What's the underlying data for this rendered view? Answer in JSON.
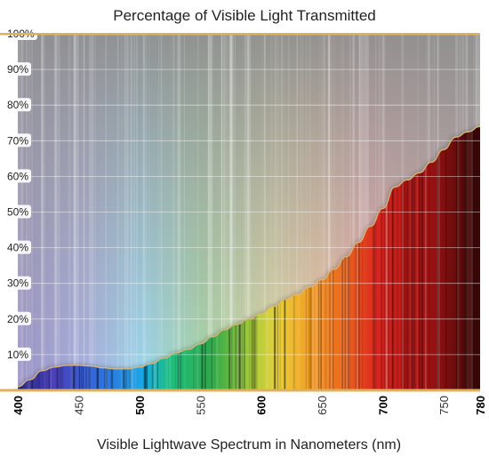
{
  "chart_data": {
    "type": "area",
    "title": "Percentage of Visible Light Transmitted",
    "xlabel": "Visible Lightwave Spectrum in Nanometers (nm)",
    "ylabel": "",
    "xlim": [
      400,
      780
    ],
    "ylim": [
      0,
      100
    ],
    "x_ticks": [
      {
        "label": "400",
        "value": 400,
        "bold": true
      },
      {
        "label": "450",
        "value": 450,
        "bold": false
      },
      {
        "label": "500",
        "value": 500,
        "bold": true
      },
      {
        "label": "550",
        "value": 550,
        "bold": false
      },
      {
        "label": "600",
        "value": 600,
        "bold": true
      },
      {
        "label": "650",
        "value": 650,
        "bold": false
      },
      {
        "label": "700",
        "value": 700,
        "bold": true
      },
      {
        "label": "750",
        "value": 750,
        "bold": false
      },
      {
        "label": "780",
        "value": 780,
        "bold": true
      }
    ],
    "y_ticks": [
      {
        "label": "10%",
        "value": 10
      },
      {
        "label": "20%",
        "value": 20
      },
      {
        "label": "30%",
        "value": 30
      },
      {
        "label": "40%",
        "value": 40
      },
      {
        "label": "50%",
        "value": 50
      },
      {
        "label": "60%",
        "value": 60
      },
      {
        "label": "70%",
        "value": 70
      },
      {
        "label": "80%",
        "value": 80
      },
      {
        "label": "90%",
        "value": 90
      },
      {
        "label": "100%",
        "value": 100
      }
    ],
    "grid": true,
    "colors": {
      "curve": "#d9b97a",
      "axis": "#e0b15a",
      "grid": "#ffffff",
      "background": "#9c9c9c"
    },
    "series": [
      {
        "x": [
          400,
          410,
          420,
          430,
          440,
          450,
          460,
          470,
          480,
          490,
          500,
          510,
          520,
          530,
          540,
          550,
          560,
          570,
          580,
          590,
          600,
          610,
          620,
          630,
          640,
          650,
          660,
          670,
          680,
          690,
          700,
          710,
          720,
          730,
          740,
          750,
          760,
          770,
          780
        ],
        "y": [
          1,
          3,
          5.5,
          6.5,
          7,
          7,
          6.8,
          6.3,
          6,
          6,
          6.5,
          7.5,
          9,
          10.5,
          11.5,
          13,
          15,
          17,
          18.5,
          20,
          21.5,
          23.5,
          25.5,
          27,
          29,
          31,
          34,
          37.5,
          41.5,
          46,
          51,
          57,
          59,
          61,
          64,
          67.5,
          71,
          72.5,
          74
        ]
      }
    ]
  }
}
